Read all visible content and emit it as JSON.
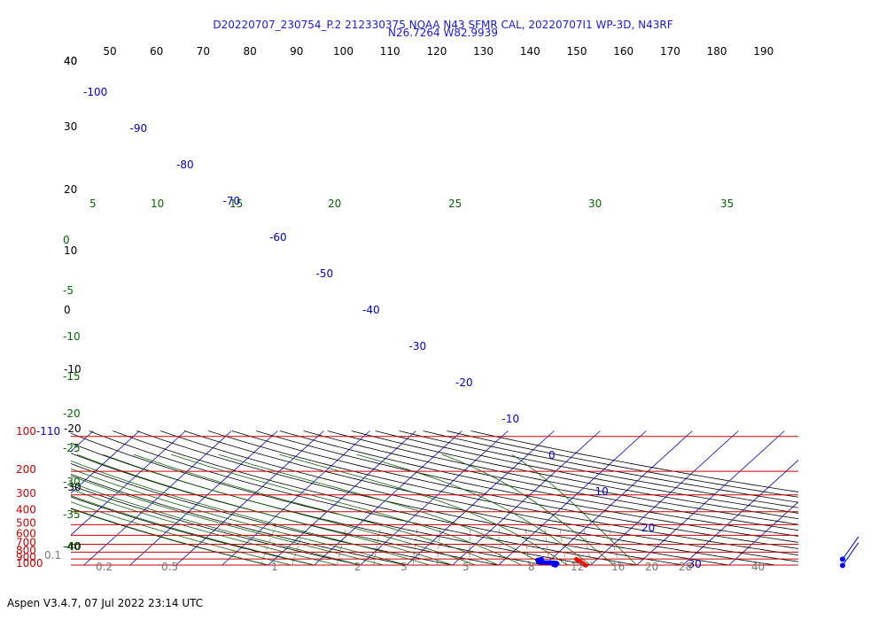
{
  "header": {
    "title_line1": "D20220707_230754_P.2 212330375 NOAA N43 SFMR CAL, 20220707I1 WP-3D, N43RF",
    "title_line2": "N26.7264 W82.9939"
  },
  "footer": {
    "text": "Aspen V3.4.7, 07 Jul 2022  23:14 UTC"
  },
  "chart_data": {
    "type": "skew-t",
    "colors": {
      "isobar": "#cc0000",
      "isotherm": "#0000cc",
      "dry_adiabat": "#000000",
      "moist_adiabat": "#006600",
      "mixing_ratio": "#777777",
      "temperature_trace": "#ff0000",
      "dewpoint_trace": "#0000ff"
    },
    "pressure_labels": [
      "100-110",
      "200",
      "300",
      "400",
      "500",
      "600",
      "700",
      "800",
      "900",
      "1000"
    ],
    "top_scale_labels": [
      "40",
      "50",
      "60",
      "70",
      "80",
      "90",
      "100",
      "110",
      "120",
      "130",
      "140",
      "150",
      "160",
      "170",
      "180",
      "190"
    ],
    "left_scale_labels": [
      "40",
      "30",
      "20",
      "10",
      "0",
      "-10",
      "-20",
      "-30",
      "-40"
    ],
    "isotherm_labels": [
      "-100",
      "-90",
      "-80",
      "-70",
      "-60",
      "-50",
      "-40",
      "-30",
      "-20",
      "-10",
      "0",
      "10",
      "20",
      "30"
    ],
    "moist_top_labels": [
      "5",
      "10",
      "15",
      "20",
      "25",
      "30",
      "35"
    ],
    "moist_left_labels": [
      "0",
      "-5",
      "-10",
      "-15",
      "-20",
      "-25",
      "-30",
      "-35",
      "-40"
    ],
    "mixing_ratio_labels": [
      "0.1",
      "0.2",
      "0.5",
      "1",
      "2",
      "3",
      "5",
      "8",
      "12",
      "16",
      "20",
      "28",
      "40"
    ],
    "temperature_trace": [
      {
        "p": 905,
        "t": 25.5
      },
      {
        "p": 925,
        "t": 26.2
      },
      {
        "p": 945,
        "t": 27.0
      },
      {
        "p": 965,
        "t": 27.6
      },
      {
        "p": 985,
        "t": 28.3
      },
      {
        "p": 1005,
        "t": 29.0
      }
    ],
    "dewpoint_trace": [
      {
        "p": 905,
        "t": 18.0
      },
      {
        "p": 915,
        "t": 17.2
      },
      {
        "p": 930,
        "t": 17.5
      },
      {
        "p": 945,
        "t": 17.8
      },
      {
        "p": 955,
        "t": 19.5
      },
      {
        "p": 962,
        "t": 22.0
      },
      {
        "p": 975,
        "t": 22.4
      },
      {
        "p": 995,
        "t": 21.8
      },
      {
        "p": 1005,
        "t": 22.5
      }
    ],
    "wind_barbs": [
      {
        "p": 905,
        "direction": 215,
        "speed_kt": 5
      },
      {
        "p": 1005,
        "direction": 215,
        "speed_kt": 5
      }
    ]
  }
}
